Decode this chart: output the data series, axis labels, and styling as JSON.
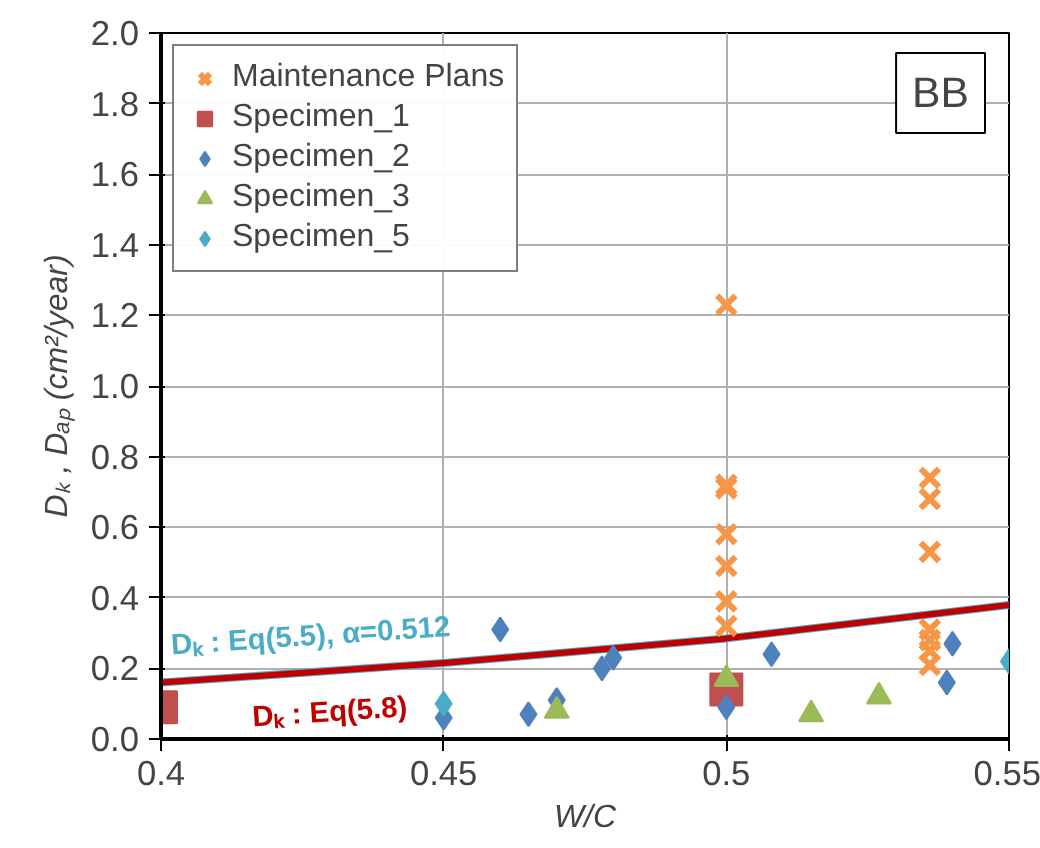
{
  "chart_data": {
    "type": "scatter",
    "title": "BB",
    "xlabel": "W/C",
    "ylabel": "Dₖ , Dₐₚ (cm²/year)",
    "xlim": [
      0.4,
      0.55
    ],
    "xticks": [
      0.4,
      0.45,
      0.5,
      0.55
    ],
    "ylim": [
      0,
      2
    ],
    "yticks": [
      {
        "value": 0,
        "label": "0.0"
      },
      {
        "value": 0.2,
        "label": "0.2"
      },
      {
        "value": 0.4,
        "label": "0.4"
      },
      {
        "value": 0.6,
        "label": "0.6"
      },
      {
        "value": 0.8,
        "label": "0.8"
      },
      {
        "value": 1,
        "label": "1.0"
      },
      {
        "value": 1.2,
        "label": "1.2"
      },
      {
        "value": 1.4,
        "label": "1.4"
      },
      {
        "value": 1.6,
        "label": "1.6"
      },
      {
        "value": 1.8,
        "label": "1.8"
      },
      {
        "value": 2,
        "label": "2.0"
      }
    ],
    "grid": true,
    "legend": "top left",
    "series": [
      {
        "name": "Dₖ : Eq(5.5), α=0.512",
        "type": "line",
        "color": "#4bacc6",
        "x": [
          0.4,
          0.45,
          0.5,
          0.55
        ],
        "values": [
          0.16,
          0.215,
          0.285,
          0.38
        ]
      },
      {
        "name": "Dₖ : Eq(5.8)",
        "type": "line",
        "color": "#c00000",
        "x": [
          0.4,
          0.45,
          0.5,
          0.55
        ],
        "values": [
          0.16,
          0.215,
          0.285,
          0.38
        ]
      },
      {
        "name": "Maintenance Plans",
        "marker": "cross",
        "color": "#f79646",
        "x": [
          0.5,
          0.5,
          0.5,
          0.5,
          0.5,
          0.5,
          0.5,
          0.536,
          0.536,
          0.536,
          0.536,
          0.536,
          0.536,
          0.536
        ],
        "values": [
          1.23,
          0.72,
          0.71,
          0.58,
          0.49,
          0.39,
          0.32,
          0.74,
          0.68,
          0.53,
          0.31,
          0.28,
          0.25,
          0.21
        ]
      },
      {
        "name": "Specimen_1",
        "marker": "square",
        "color": "#c0504d",
        "x": [
          0.4,
          0.5
        ],
        "values": [
          0.09,
          0.14
        ]
      },
      {
        "name": "Specimen_2",
        "marker": "diamond",
        "color": "#4f81bd",
        "x": [
          0.45,
          0.46,
          0.465,
          0.47,
          0.478,
          0.48,
          0.5,
          0.508,
          0.54,
          0.539
        ],
        "values": [
          0.06,
          0.31,
          0.07,
          0.11,
          0.2,
          0.23,
          0.09,
          0.24,
          0.27,
          0.16
        ]
      },
      {
        "name": "Specimen_3",
        "marker": "triangle",
        "color": "#9bbb59",
        "x": [
          0.47,
          0.5,
          0.515,
          0.527
        ],
        "values": [
          0.08,
          0.17,
          0.07,
          0.12
        ]
      },
      {
        "name": "Specimen_5",
        "marker": "diamond",
        "color": "#4bacc6",
        "x": [
          0.45,
          0.55
        ],
        "values": [
          0.1,
          0.22
        ]
      }
    ]
  }
}
